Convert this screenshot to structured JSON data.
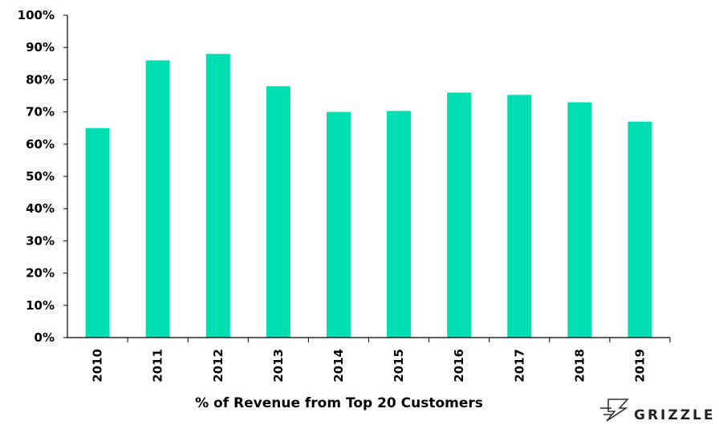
{
  "chart_data": {
    "type": "bar",
    "categories": [
      "2010",
      "2011",
      "2012",
      "2013",
      "2014",
      "2015",
      "2016",
      "2017",
      "2018",
      "2019"
    ],
    "values": [
      65,
      86,
      88,
      78,
      70,
      70.3,
      76,
      75.3,
      73,
      67
    ],
    "xlabel": "% of Revenue  from Top 20 Customers",
    "ylabel": "",
    "ylim": [
      0,
      100
    ],
    "y_tick_step": 10,
    "y_tick_format": "percent",
    "bar_color": "#00DEB2",
    "grid": false,
    "legend": "none"
  },
  "logo": {
    "text": "GRIZZLE",
    "icon": "grizzle-logo-icon"
  }
}
